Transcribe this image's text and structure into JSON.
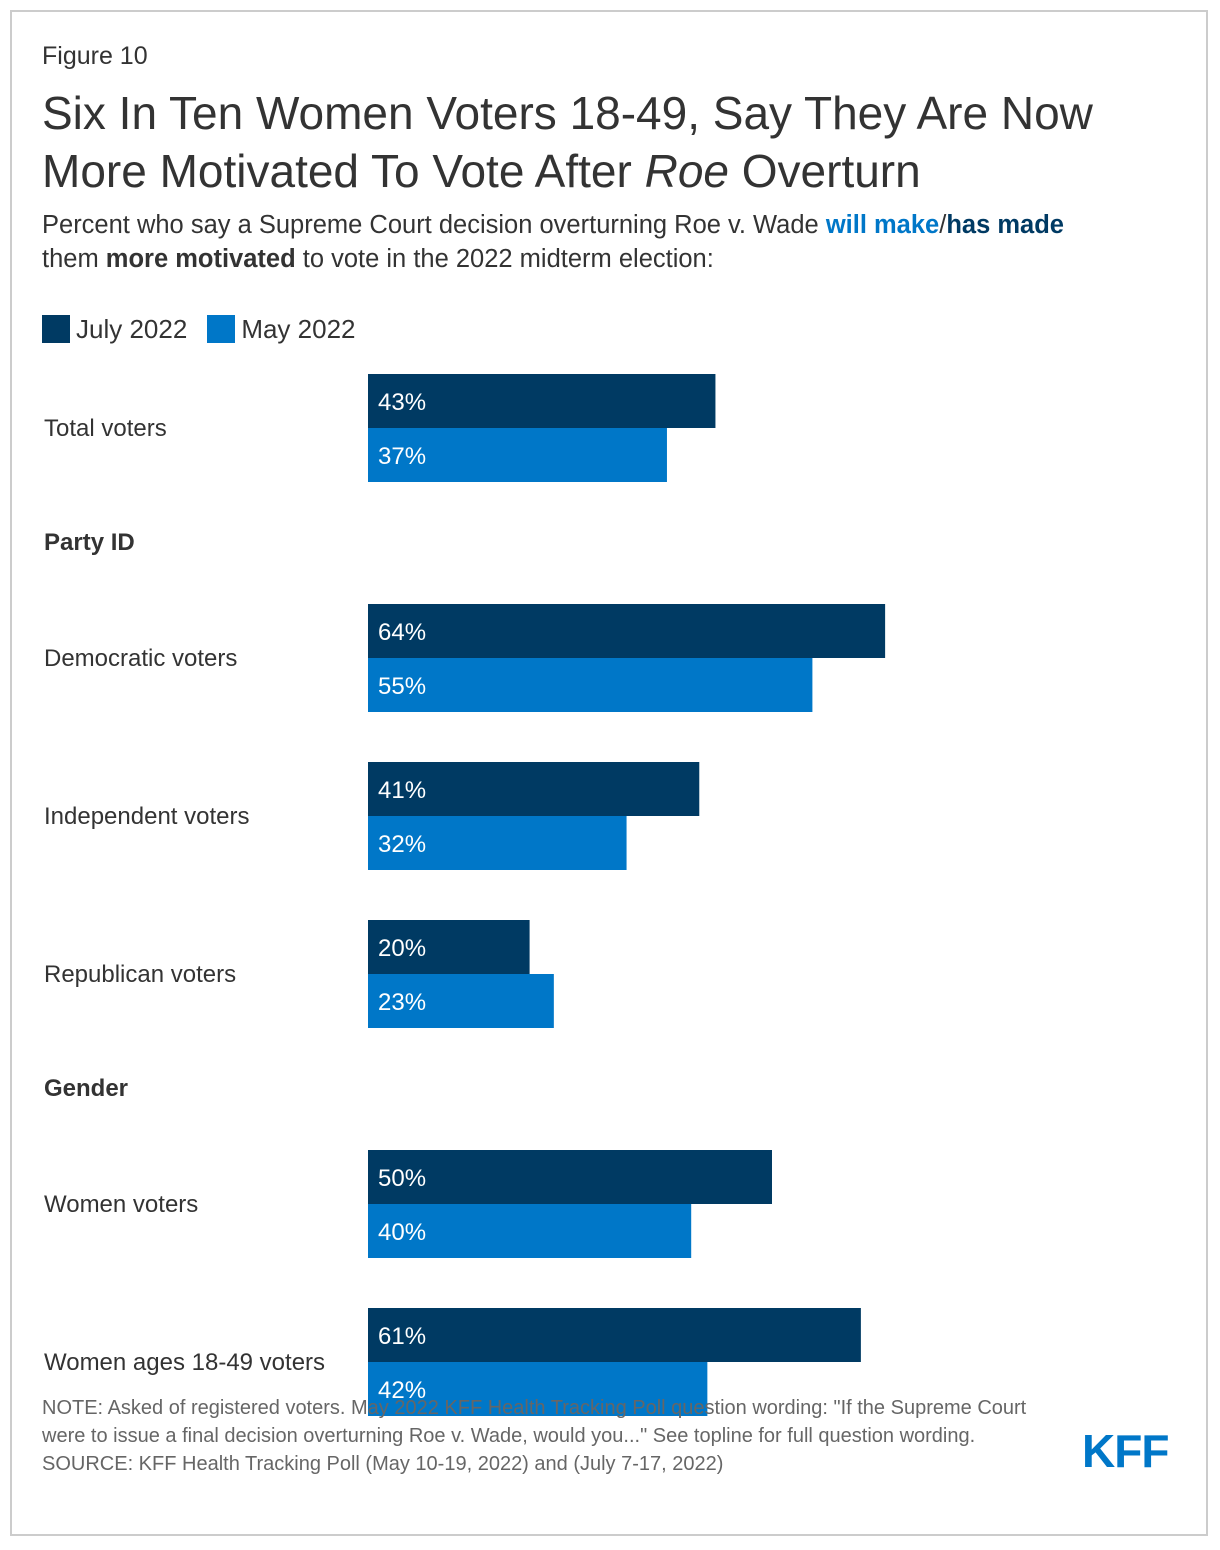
{
  "figure_label": "Figure 10",
  "title": {
    "line1": "Six In Ten Women Voters 18-49, Say They Are Now",
    "line2_pre": "More Motivated To Vote After ",
    "line2_italic": "Roe",
    "line2_post": " Overturn"
  },
  "subtitle": {
    "part1": "Percent who say a Supreme Court decision overturning Roe v. Wade ",
    "will_make": "will make",
    "slash": "/",
    "has_made": "has made",
    "part2": " them ",
    "more_motivated": "more motivated",
    "part3": " to vote in the 2022 midterm election:"
  },
  "legend": {
    "july": "July 2022",
    "may": "May 2022"
  },
  "colors": {
    "july": "#003a63",
    "may": "#0077c8",
    "text": "#333333",
    "bar_label": "#ffffff"
  },
  "chart_data": {
    "type": "bar",
    "orientation": "horizontal",
    "title": "Six In Ten Women Voters 18-49, Say They Are Now More Motivated To Vote After Roe Overturn",
    "xlim": [
      0,
      100
    ],
    "series_names": [
      "July 2022",
      "May 2022"
    ],
    "groups": [
      {
        "heading": "",
        "rows": [
          {
            "label": "Total voters",
            "july": 43,
            "may": 37
          }
        ]
      },
      {
        "heading": "Party ID",
        "rows": [
          {
            "label": "Democratic voters",
            "july": 64,
            "may": 55
          },
          {
            "label": "Independent voters",
            "july": 41,
            "may": 32
          },
          {
            "label": "Republican voters",
            "july": 20,
            "may": 23
          }
        ]
      },
      {
        "heading": "Gender",
        "rows": [
          {
            "label": "Women voters",
            "july": 50,
            "may": 40
          },
          {
            "label": "Women ages 18-49 voters",
            "july": 61,
            "may": 42
          }
        ]
      }
    ]
  },
  "footer": {
    "note": "NOTE: Asked of registered voters. May 2022 KFF Health Tracking Poll question wording: \"If the Supreme Court were to issue a final decision overturning Roe v. Wade, would you...\" See topline for full question wording.",
    "source": "SOURCE: KFF Health Tracking Poll (May 10-19, 2022) and (July 7-17, 2022)",
    "logo": "KFF"
  }
}
